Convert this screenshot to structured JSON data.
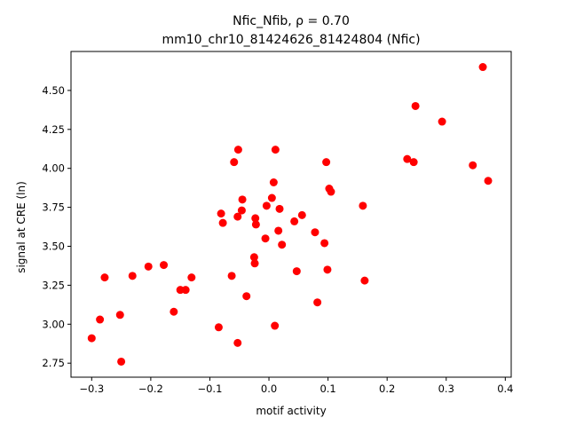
{
  "chart_data": {
    "type": "scatter",
    "title_line1": "Nfic_Nfib, ρ = 0.70",
    "title_line2": "mm10_chr10_81424626_81424804 (Nfic)",
    "xlabel": "motif activity",
    "ylabel": "signal at CRE (ln)",
    "xlim": [
      -0.335,
      0.41
    ],
    "ylim": [
      2.66,
      4.75
    ],
    "xticks": [
      -0.3,
      -0.2,
      -0.1,
      0.0,
      0.1,
      0.2,
      0.3,
      0.4
    ],
    "xtick_labels": [
      "−0.3",
      "−0.2",
      "−0.1",
      "0.0",
      "0.1",
      "0.2",
      "0.3",
      "0.4"
    ],
    "yticks": [
      2.75,
      3.0,
      3.25,
      3.5,
      3.75,
      4.0,
      4.25,
      4.5
    ],
    "ytick_labels": [
      "2.75",
      "3.00",
      "3.25",
      "3.50",
      "3.75",
      "4.00",
      "4.25",
      "4.50"
    ],
    "marker_color": "#ff0000",
    "grid": false,
    "points": [
      {
        "x": -0.3,
        "y": 2.91
      },
      {
        "x": -0.286,
        "y": 3.03
      },
      {
        "x": -0.278,
        "y": 3.3
      },
      {
        "x": -0.252,
        "y": 3.06
      },
      {
        "x": -0.25,
        "y": 2.76
      },
      {
        "x": -0.231,
        "y": 3.31
      },
      {
        "x": -0.204,
        "y": 3.37
      },
      {
        "x": -0.178,
        "y": 3.38
      },
      {
        "x": -0.161,
        "y": 3.08
      },
      {
        "x": -0.15,
        "y": 3.22
      },
      {
        "x": -0.141,
        "y": 3.22
      },
      {
        "x": -0.131,
        "y": 3.3
      },
      {
        "x": -0.085,
        "y": 2.98
      },
      {
        "x": -0.081,
        "y": 3.71
      },
      {
        "x": -0.078,
        "y": 3.65
      },
      {
        "x": -0.063,
        "y": 3.31
      },
      {
        "x": -0.059,
        "y": 4.04
      },
      {
        "x": -0.053,
        "y": 2.88
      },
      {
        "x": -0.052,
        "y": 4.12
      },
      {
        "x": -0.053,
        "y": 3.69
      },
      {
        "x": -0.046,
        "y": 3.73
      },
      {
        "x": -0.045,
        "y": 3.8
      },
      {
        "x": -0.038,
        "y": 3.18
      },
      {
        "x": -0.025,
        "y": 3.43
      },
      {
        "x": -0.024,
        "y": 3.39
      },
      {
        "x": -0.023,
        "y": 3.68
      },
      {
        "x": -0.022,
        "y": 3.64
      },
      {
        "x": -0.006,
        "y": 3.55
      },
      {
        "x": -0.004,
        "y": 3.76
      },
      {
        "x": 0.005,
        "y": 3.81
      },
      {
        "x": 0.008,
        "y": 3.91
      },
      {
        "x": 0.01,
        "y": 2.99
      },
      {
        "x": 0.011,
        "y": 4.12
      },
      {
        "x": 0.016,
        "y": 3.6
      },
      {
        "x": 0.018,
        "y": 3.74
      },
      {
        "x": 0.022,
        "y": 3.51
      },
      {
        "x": 0.043,
        "y": 3.66
      },
      {
        "x": 0.047,
        "y": 3.34
      },
      {
        "x": 0.056,
        "y": 3.7
      },
      {
        "x": 0.078,
        "y": 3.59
      },
      {
        "x": 0.082,
        "y": 3.14
      },
      {
        "x": 0.094,
        "y": 3.52
      },
      {
        "x": 0.097,
        "y": 4.04
      },
      {
        "x": 0.099,
        "y": 3.35
      },
      {
        "x": 0.102,
        "y": 3.87
      },
      {
        "x": 0.105,
        "y": 3.85
      },
      {
        "x": 0.159,
        "y": 3.76
      },
      {
        "x": 0.162,
        "y": 3.28
      },
      {
        "x": 0.234,
        "y": 4.06
      },
      {
        "x": 0.245,
        "y": 4.04
      },
      {
        "x": 0.248,
        "y": 4.4
      },
      {
        "x": 0.293,
        "y": 4.3
      },
      {
        "x": 0.345,
        "y": 4.02
      },
      {
        "x": 0.362,
        "y": 4.65
      },
      {
        "x": 0.371,
        "y": 3.92
      }
    ]
  }
}
